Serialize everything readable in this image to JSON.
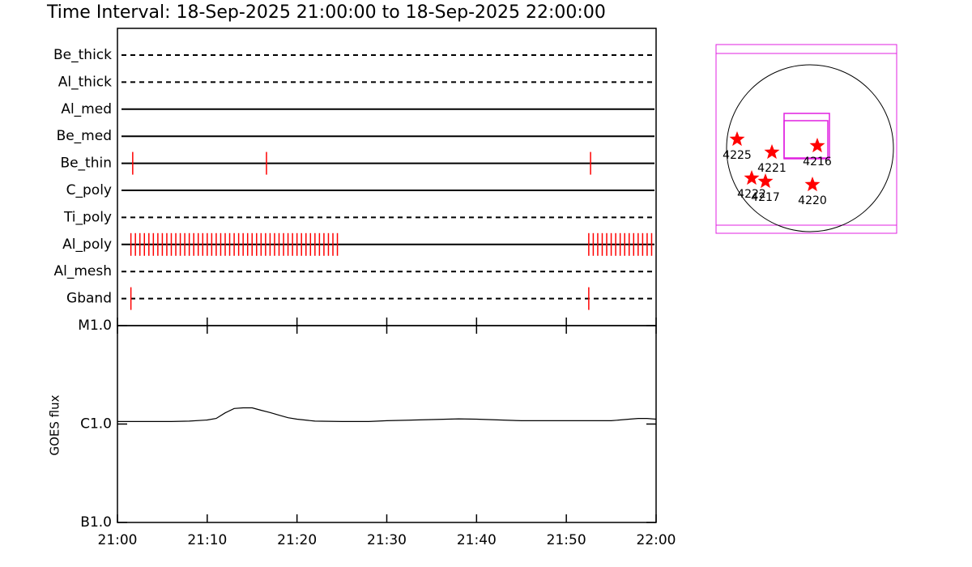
{
  "chart_data": [
    {
      "type": "timeline",
      "title": "Time Interval: 18-Sep-2025 21:00:00 to 18-Sep-2025 22:00:00",
      "xlim": [
        0,
        60
      ],
      "event_color": "#ff0000",
      "rows": [
        {
          "name": "Be_thick",
          "style": "dashed",
          "events": []
        },
        {
          "name": "Al_thick",
          "style": "dashed",
          "events": []
        },
        {
          "name": "Al_med",
          "style": "solid",
          "events": []
        },
        {
          "name": "Be_med",
          "style": "solid",
          "events": []
        },
        {
          "name": "Be_thin",
          "style": "solid",
          "events": [
            1.7,
            16.6,
            52.7
          ]
        },
        {
          "name": "C_poly",
          "style": "solid",
          "events": []
        },
        {
          "name": "Ti_poly",
          "style": "dashed",
          "events": []
        },
        {
          "name": "Al_poly",
          "style": "solid",
          "events": [
            1.5,
            2,
            2.5,
            3,
            3.5,
            4,
            4.5,
            5,
            5.5,
            6,
            6.5,
            7,
            7.5,
            8,
            8.5,
            9,
            9.5,
            10,
            10.5,
            11,
            11.5,
            12,
            12.5,
            13,
            13.5,
            14,
            14.5,
            15,
            15.5,
            16,
            16.5,
            17,
            17.5,
            18,
            18.5,
            19,
            19.5,
            20,
            20.5,
            21,
            21.5,
            22,
            22.5,
            23,
            23.5,
            24,
            24.5,
            52.5,
            53,
            53.5,
            54,
            54.5,
            55,
            55.5,
            56,
            56.5,
            57,
            57.5,
            58,
            58.5,
            59,
            59.5
          ]
        },
        {
          "name": "Al_mesh",
          "style": "dashed",
          "events": []
        },
        {
          "name": "Gband",
          "style": "dashed",
          "events": [
            1.5,
            52.5
          ]
        }
      ]
    },
    {
      "type": "line",
      "y_label": "GOES flux",
      "log_y": true,
      "color": "#000000",
      "xlim": [
        0,
        60
      ],
      "xticks": [
        {
          "value": 0,
          "label": "21:00"
        },
        {
          "value": 10,
          "label": "21:10"
        },
        {
          "value": 20,
          "label": "21:20"
        },
        {
          "value": 30,
          "label": "21:30"
        },
        {
          "value": 40,
          "label": "21:40"
        },
        {
          "value": 50,
          "label": "21:50"
        },
        {
          "value": 60,
          "label": "22:00"
        }
      ],
      "ylim": [
        1e-07,
        1e-05
      ],
      "yticks": [
        {
          "value": 1e-07,
          "label": "B1.0"
        },
        {
          "value": 1e-06,
          "label": "C1.0"
        },
        {
          "value": 1e-05,
          "label": "M1.0"
        }
      ],
      "x": [
        0,
        2,
        4,
        6,
        8,
        10,
        11,
        12,
        13,
        14,
        15,
        16,
        17,
        18,
        19,
        20,
        22,
        25,
        28,
        30,
        35,
        38,
        40,
        45,
        50,
        55,
        57,
        58,
        59,
        60
      ],
      "values": [
        1.06e-06,
        1.06e-06,
        1.06e-06,
        1.06e-06,
        1.07e-06,
        1.1e-06,
        1.14e-06,
        1.3e-06,
        1.44e-06,
        1.46e-06,
        1.46e-06,
        1.38e-06,
        1.31e-06,
        1.23e-06,
        1.16e-06,
        1.12e-06,
        1.07e-06,
        1.06e-06,
        1.06e-06,
        1.08e-06,
        1.11e-06,
        1.13e-06,
        1.12e-06,
        1.08e-06,
        1.08e-06,
        1.08e-06,
        1.12e-06,
        1.14e-06,
        1.14e-06,
        1.12e-06
      ]
    }
  ],
  "map": {
    "regions": [
      "4225",
      "4221",
      "4216",
      "4222",
      "4217",
      "4220"
    ]
  }
}
